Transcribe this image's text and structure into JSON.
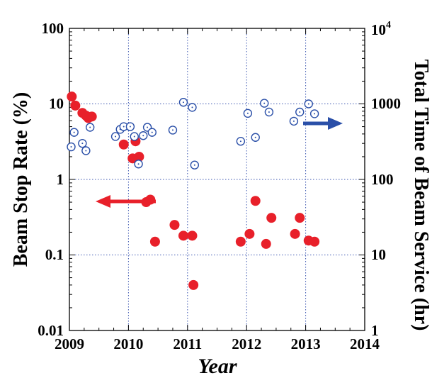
{
  "chart_data": {
    "type": "scatter",
    "xlabel": "Year",
    "ylabel_left": "Beam Stop Rate (%)",
    "ylabel_right": "Total Time of Beam Service (hr)",
    "xlim": [
      2009,
      2014
    ],
    "ylim_left": [
      0.01,
      100
    ],
    "ylim_right": [
      1,
      10000
    ],
    "yscale": "log",
    "grid": "major, dotted blue",
    "x_ticks": [
      "2009",
      "2010",
      "2011",
      "2012",
      "2013",
      "2014"
    ],
    "y_left_ticks": [
      "0.01",
      "0.1",
      "1",
      "10",
      "100"
    ],
    "y_right_ticks": [
      {
        "base": "1",
        "exp": ""
      },
      {
        "base": "10",
        "exp": ""
      },
      {
        "base": "100",
        "exp": ""
      },
      {
        "base": "1000",
        "exp": ""
      },
      {
        "base": "10",
        "exp": "4"
      }
    ],
    "annotations": [
      {
        "type": "arrow",
        "direction": "left",
        "color": "#e8202a",
        "meaning": "Beam Stop Rate uses left axis"
      },
      {
        "type": "arrow",
        "direction": "right",
        "color": "#2a4fa8",
        "meaning": "Total Time of Beam Service uses right axis"
      }
    ],
    "series": [
      {
        "axis": "left",
        "marker": "filled-circle",
        "color": "#e8202a",
        "points": [
          [
            2009.04,
            12.5
          ],
          [
            2009.1,
            9.5
          ],
          [
            2009.22,
            7.6
          ],
          [
            2009.28,
            7.0
          ],
          [
            2009.32,
            6.5
          ],
          [
            2009.38,
            6.8
          ],
          [
            2009.92,
            2.9
          ],
          [
            2010.07,
            1.9
          ],
          [
            2010.12,
            3.2
          ],
          [
            2010.18,
            2.0
          ],
          [
            2010.3,
            0.5
          ],
          [
            2010.37,
            0.54
          ],
          [
            2010.45,
            0.15
          ],
          [
            2010.78,
            0.25
          ],
          [
            2010.93,
            0.18
          ],
          [
            2011.08,
            0.18
          ],
          [
            2011.1,
            0.04
          ],
          [
            2011.9,
            0.15
          ],
          [
            2012.05,
            0.19
          ],
          [
            2012.15,
            0.52
          ],
          [
            2012.33,
            0.14
          ],
          [
            2012.42,
            0.31
          ],
          [
            2012.82,
            0.19
          ],
          [
            2012.9,
            0.31
          ],
          [
            2013.05,
            0.155
          ],
          [
            2013.15,
            0.15
          ]
        ]
      },
      {
        "axis": "right",
        "marker": "open-circle-dot",
        "color": "#2a4fa8",
        "points": [
          [
            2009.03,
            270
          ],
          [
            2009.08,
            420
          ],
          [
            2009.22,
            300
          ],
          [
            2009.28,
            240
          ],
          [
            2009.35,
            490
          ],
          [
            2009.78,
            370
          ],
          [
            2009.86,
            460
          ],
          [
            2009.92,
            500
          ],
          [
            2010.03,
            500
          ],
          [
            2010.1,
            370
          ],
          [
            2010.17,
            160
          ],
          [
            2010.25,
            380
          ],
          [
            2010.32,
            490
          ],
          [
            2010.4,
            420
          ],
          [
            2010.75,
            450
          ],
          [
            2010.93,
            1050
          ],
          [
            2011.08,
            900
          ],
          [
            2011.12,
            155
          ],
          [
            2011.9,
            320
          ],
          [
            2012.02,
            750
          ],
          [
            2012.15,
            360
          ],
          [
            2012.3,
            1020
          ],
          [
            2012.38,
            780
          ],
          [
            2012.8,
            590
          ],
          [
            2012.9,
            780
          ],
          [
            2013.05,
            1000
          ],
          [
            2013.15,
            740
          ]
        ]
      }
    ]
  }
}
